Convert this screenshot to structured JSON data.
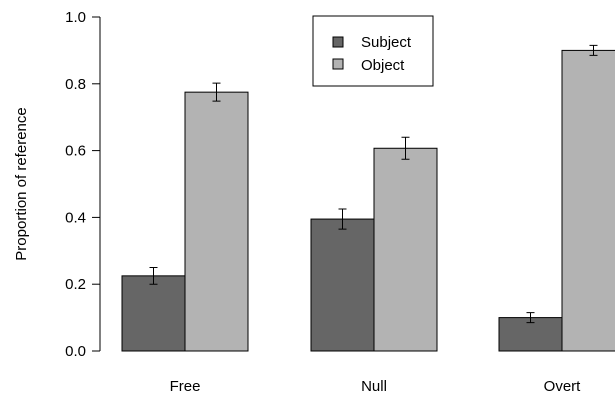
{
  "chart_data": {
    "type": "bar",
    "title": "",
    "xlabel": "",
    "ylabel": "Proportion of reference",
    "ylim": [
      0,
      1
    ],
    "yticks": [
      "0.0",
      "0.2",
      "0.4",
      "0.6",
      "0.8",
      "1.0"
    ],
    "categories": [
      "Free",
      "Null",
      "Overt"
    ],
    "series": [
      {
        "name": "Subject",
        "color": "#666666",
        "values": [
          0.225,
          0.395,
          0.1
        ],
        "errors": [
          0.025,
          0.03,
          0.015
        ]
      },
      {
        "name": "Object",
        "color": "#b3b3b3",
        "values": [
          0.775,
          0.607,
          0.9
        ],
        "errors": [
          0.027,
          0.033,
          0.015
        ]
      }
    ],
    "legend": {
      "position": "top-center",
      "items": [
        "Subject",
        "Object"
      ]
    },
    "grid": false
  }
}
